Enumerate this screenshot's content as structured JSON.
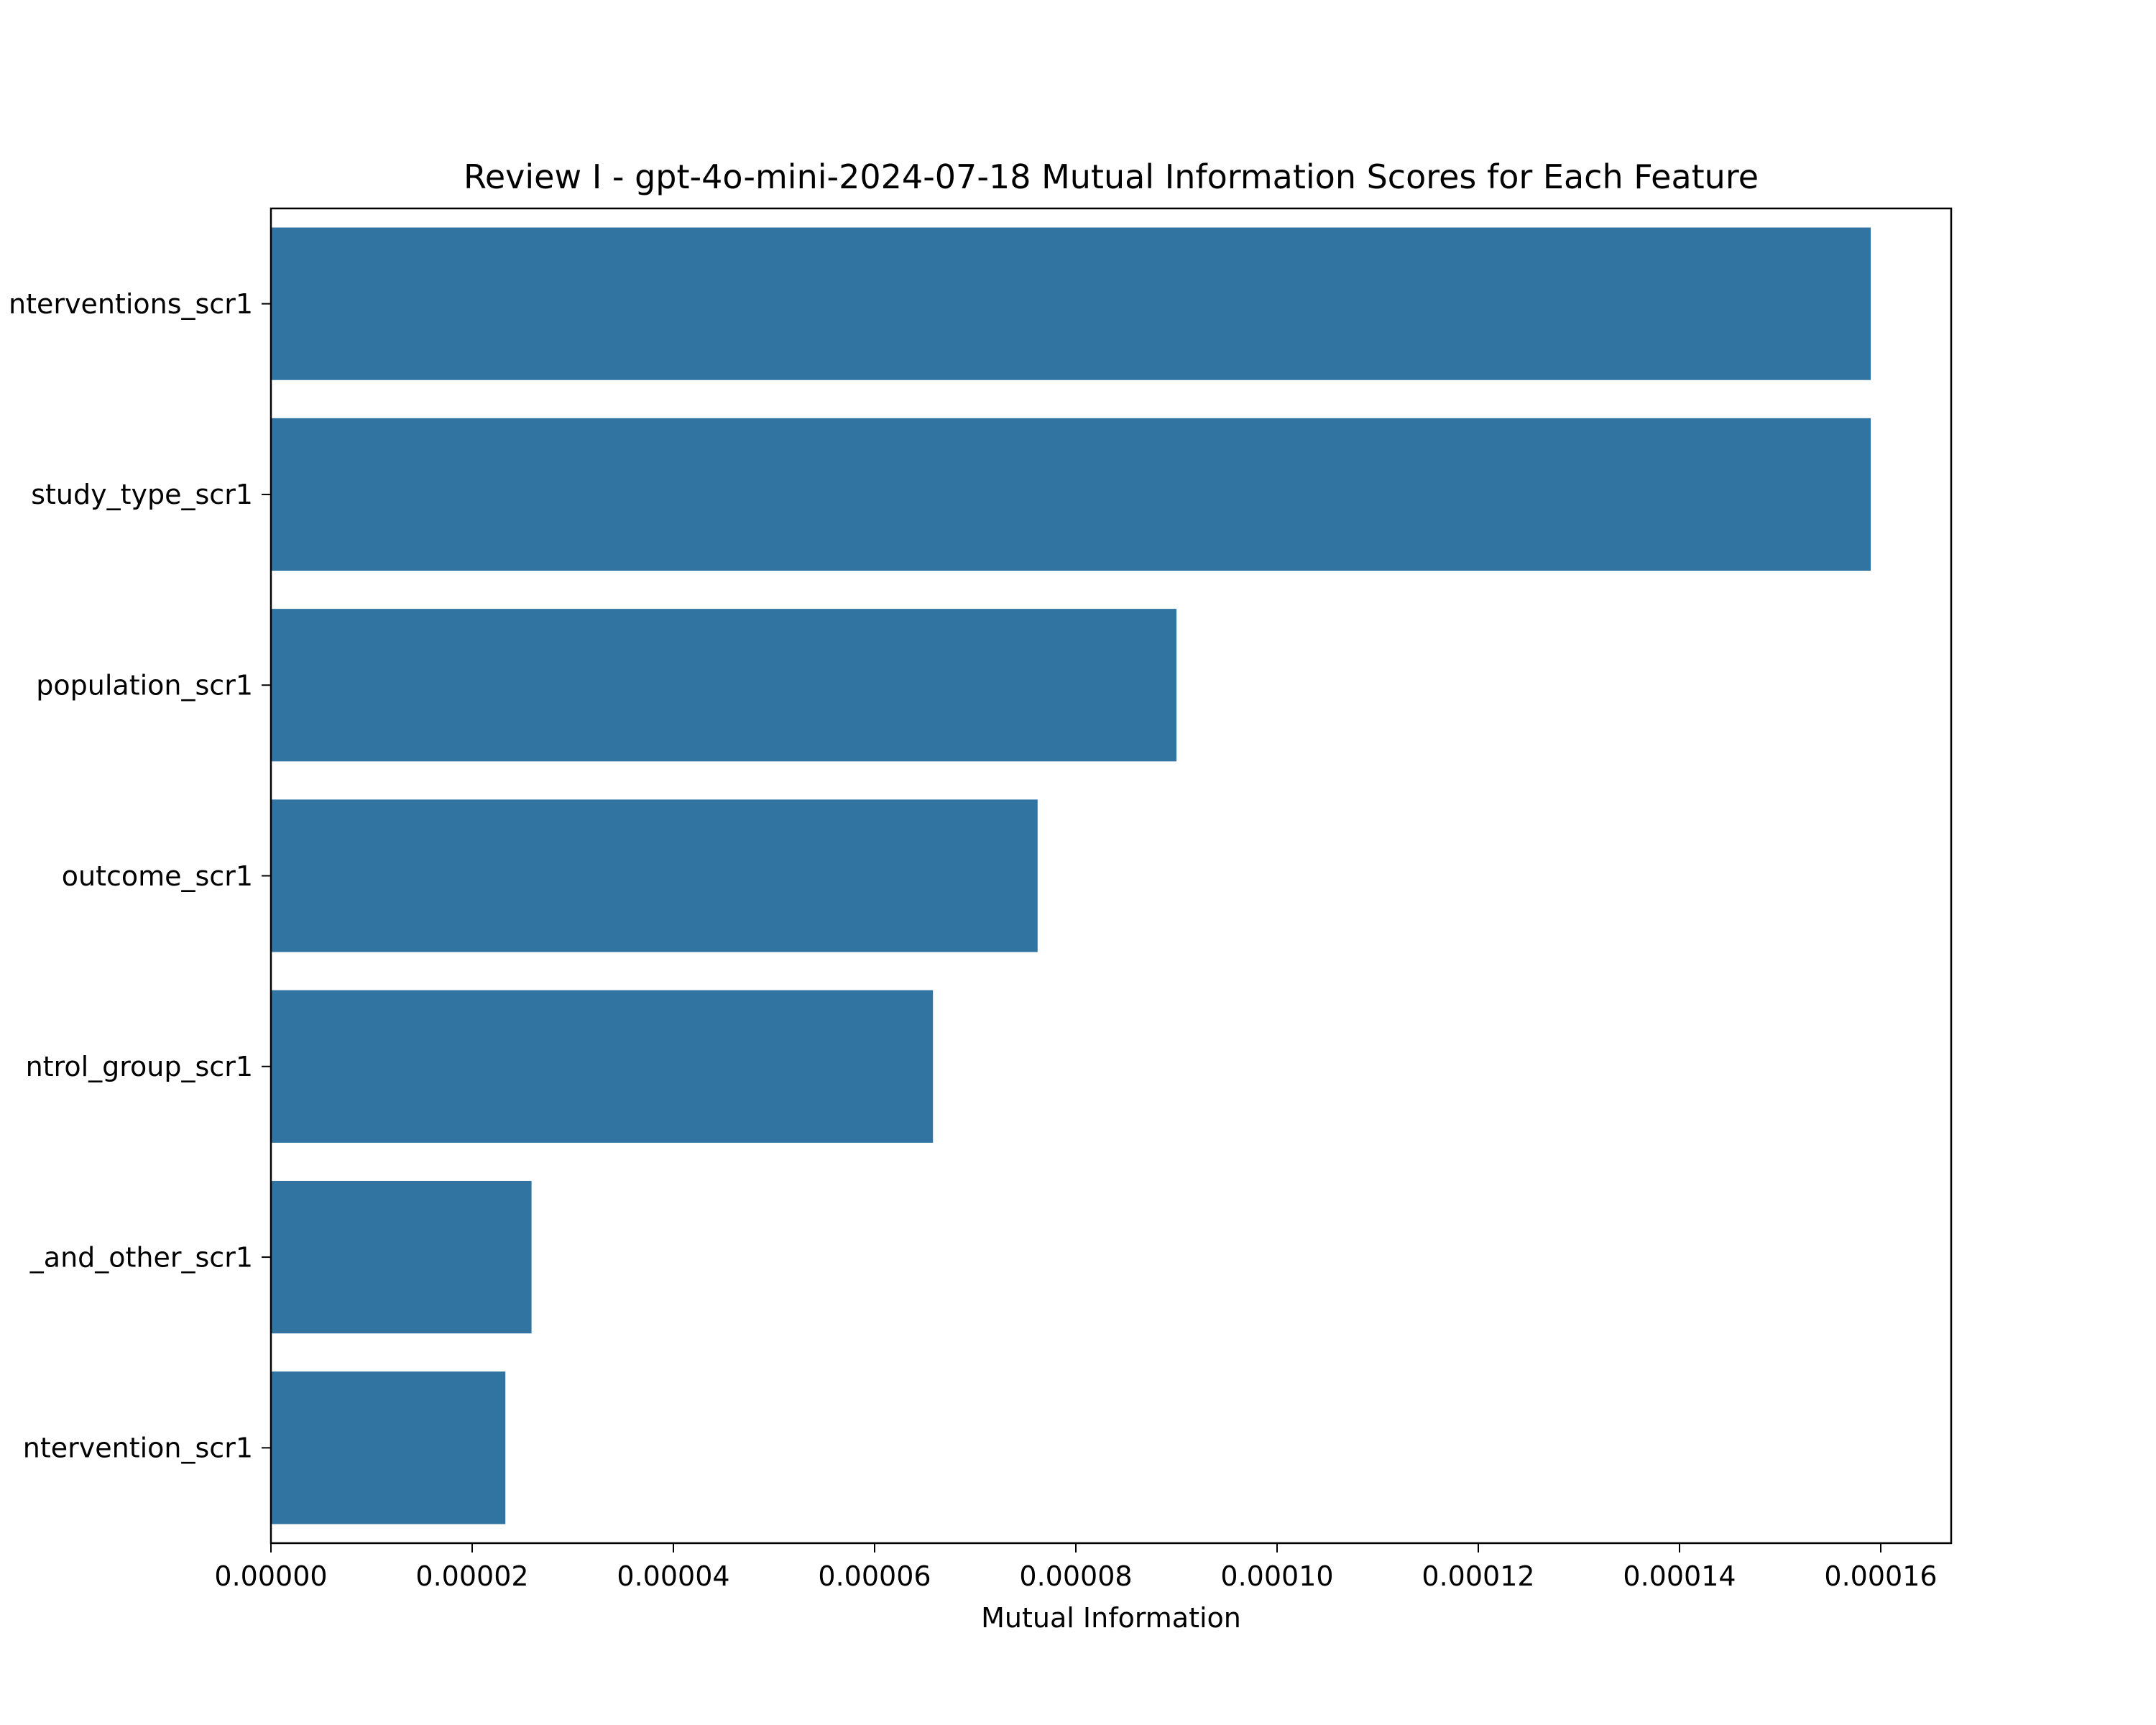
{
  "chart_data": {
    "type": "bar",
    "orientation": "horizontal",
    "title": "Review I - gpt-4o-mini-2024-07-18 Mutual Information Scores for Each Feature",
    "xlabel": "Mutual Information",
    "ylabel": "",
    "categories": [
      "nterventions_scr1",
      "study_type_scr1",
      "population_scr1",
      "outcome_scr1",
      "ntrol_group_scr1",
      "_and_other_scr1",
      "ntervention_scr1"
    ],
    "values": [
      0.000159,
      0.000159,
      9e-05,
      7.62e-05,
      6.58e-05,
      2.59e-05,
      2.33e-05
    ],
    "xlim": [
      0,
      0.000167
    ],
    "xticks": [
      0,
      2e-05,
      4e-05,
      6e-05,
      8e-05,
      0.0001,
      0.00012,
      0.00014,
      0.00016
    ],
    "xtick_labels": [
      "0.00000",
      "0.00002",
      "0.00004",
      "0.00006",
      "0.00008",
      "0.00010",
      "0.00012",
      "0.00014",
      "0.00016"
    ],
    "bar_color": "#3274a1",
    "grid": false,
    "legend": "none"
  }
}
